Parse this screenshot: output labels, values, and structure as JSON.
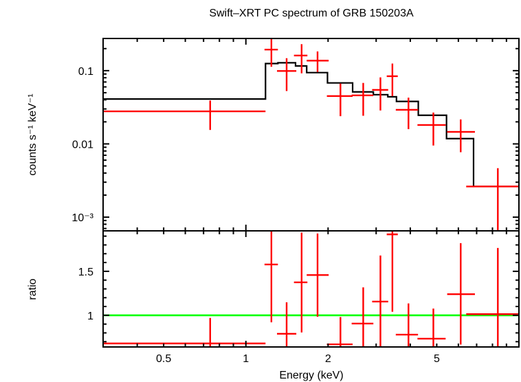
{
  "chart_data": [
    {
      "type": "scatter",
      "panel": "spectrum",
      "title": "Swift–XRT PC spectrum of GRB 150203A",
      "ylabel": "counts s⁻¹ keV⁻¹",
      "xlabel": "Energy (keV)",
      "xscale": "log",
      "yscale": "log",
      "xlim": [
        0.3,
        10
      ],
      "ylim": [
        0.00065,
        0.275
      ],
      "yticks": [
        {
          "value": 0.1,
          "label": "0.1"
        },
        {
          "value": 0.01,
          "label": "0.01"
        },
        {
          "value": 0.001,
          "label": "10⁻³"
        }
      ],
      "data_color": "#ff0000",
      "model_color": "#000000",
      "data": [
        {
          "e": 0.74,
          "elo": 0.3,
          "ehi": 1.18,
          "y": 0.0278,
          "ylo": 0.0155,
          "yhi": 0.0391
        },
        {
          "e": 1.24,
          "elo": 1.17,
          "ehi": 1.31,
          "y": 0.194,
          "ylo": 0.113,
          "yhi": 0.32
        },
        {
          "e": 1.41,
          "elo": 1.3,
          "ehi": 1.53,
          "y": 0.099,
          "ylo": 0.0527,
          "yhi": 0.148
        },
        {
          "e": 1.6,
          "elo": 1.5,
          "ehi": 1.68,
          "y": 0.161,
          "ylo": 0.092,
          "yhi": 0.23
        },
        {
          "e": 1.83,
          "elo": 1.67,
          "ehi": 2.01,
          "y": 0.137,
          "ylo": 0.096,
          "yhi": 0.183
        },
        {
          "e": 2.22,
          "elo": 1.98,
          "ehi": 2.46,
          "y": 0.045,
          "ylo": 0.0239,
          "yhi": 0.0668
        },
        {
          "e": 2.69,
          "elo": 2.44,
          "ehi": 2.93,
          "y": 0.046,
          "ylo": 0.0242,
          "yhi": 0.068
        },
        {
          "e": 3.11,
          "elo": 2.9,
          "ehi": 3.32,
          "y": 0.0547,
          "ylo": 0.0286,
          "yhi": 0.081
        },
        {
          "e": 3.44,
          "elo": 3.28,
          "ehi": 3.6,
          "y": 0.084,
          "ylo": 0.045,
          "yhi": 0.125
        },
        {
          "e": 3.94,
          "elo": 3.54,
          "ehi": 4.27,
          "y": 0.0292,
          "ylo": 0.0159,
          "yhi": 0.0428
        },
        {
          "e": 4.86,
          "elo": 4.25,
          "ehi": 5.39,
          "y": 0.0181,
          "ylo": 0.0095,
          "yhi": 0.0268
        },
        {
          "e": 6.12,
          "elo": 5.46,
          "ehi": 6.9,
          "y": 0.0146,
          "ylo": 0.0077,
          "yhi": 0.0216
        },
        {
          "e": 8.37,
          "elo": 6.41,
          "ehi": 10.0,
          "y": 0.00262,
          "ylo": 0.0003,
          "yhi": 0.00467
        }
      ],
      "model": {
        "edges": [
          0.3,
          1.18,
          1.31,
          1.52,
          1.67,
          1.99,
          2.46,
          2.93,
          3.31,
          3.56,
          4.28,
          5.43,
          6.82,
          10.0
        ],
        "values": [
          0.041,
          0.125,
          0.128,
          0.116,
          0.094,
          0.068,
          0.0513,
          0.047,
          0.044,
          0.038,
          0.0246,
          0.0118,
          0.00262
        ]
      }
    },
    {
      "type": "scatter",
      "panel": "ratio",
      "ylabel": "ratio",
      "xlabel": "Energy (keV)",
      "xscale": "log",
      "xlim": [
        0.3,
        10
      ],
      "ylim": [
        0.64,
        1.96
      ],
      "xticks": [
        {
          "value": 0.5,
          "label": "0.5"
        },
        {
          "value": 1,
          "label": "1"
        },
        {
          "value": 2,
          "label": "2"
        },
        {
          "value": 5,
          "label": "5"
        }
      ],
      "yticks": [
        {
          "value": 1.5,
          "label": "1.5"
        },
        {
          "value": 1,
          "label": "1"
        }
      ],
      "reference_line": 1,
      "reference_color": "#00ff00",
      "data": [
        {
          "y": 0.68,
          "ylo": 0.5,
          "yhi": 0.97
        },
        {
          "y": 1.578,
          "ylo": 0.92,
          "yhi": 2.1
        },
        {
          "y": 0.79,
          "ylo": 0.5,
          "yhi": 1.148
        },
        {
          "y": 1.375,
          "ylo": 0.805,
          "yhi": 1.94
        },
        {
          "y": 1.458,
          "ylo": 0.984,
          "yhi": 1.93
        },
        {
          "y": 0.67,
          "ylo": 0.5,
          "yhi": 0.98
        },
        {
          "y": 0.906,
          "ylo": 0.5,
          "yhi": 1.318
        },
        {
          "y": 1.156,
          "ylo": 0.5,
          "yhi": 1.68
        },
        {
          "y": 1.92,
          "ylo": 1.04,
          "yhi": 2.1
        },
        {
          "y": 0.78,
          "ylo": 0.5,
          "yhi": 1.135
        },
        {
          "y": 0.734,
          "ylo": 0.5,
          "yhi": 1.076
        },
        {
          "y": 1.24,
          "ylo": 0.667,
          "yhi": 1.82
        },
        {
          "y": 1.013,
          "ylo": 0.5,
          "yhi": 1.766
        }
      ]
    }
  ]
}
